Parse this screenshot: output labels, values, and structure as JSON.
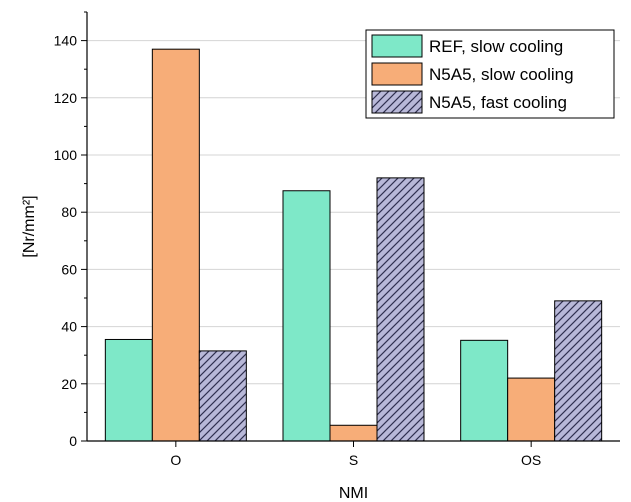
{
  "chart_data": {
    "type": "bar",
    "title": "",
    "xlabel": "NMI",
    "ylabel": "[Nr/mm²]",
    "categories": [
      "O",
      "S",
      "OS"
    ],
    "ylim": [
      0,
      150
    ],
    "yticks": [
      0,
      20,
      40,
      60,
      80,
      100,
      120,
      140
    ],
    "grid": true,
    "legend_position": "top-right",
    "series": [
      {
        "name": "REF, slow cooling",
        "values": [
          35.5,
          87.5,
          35.2
        ],
        "color": "#7ee8c8",
        "pattern": "solid"
      },
      {
        "name": "N5A5, slow cooling",
        "values": [
          137,
          5.5,
          22
        ],
        "color": "#f7ad78",
        "pattern": "solid"
      },
      {
        "name": "N5A5, fast cooling",
        "values": [
          31.5,
          92,
          49
        ],
        "color": "#b8b8d8",
        "pattern": "hatch"
      }
    ]
  }
}
